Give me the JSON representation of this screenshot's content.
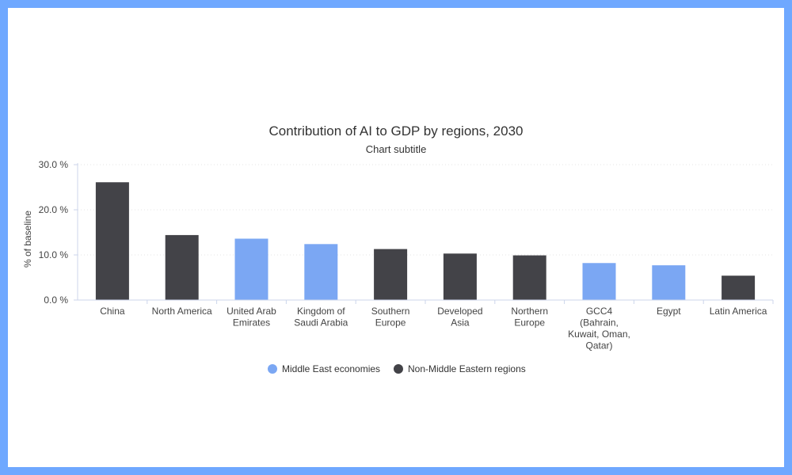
{
  "chart_data": {
    "type": "bar",
    "title": "Contribution of AI to GDP by regions, 2030",
    "subtitle": "Chart subtitle",
    "ylabel": "% of baseline",
    "xlabel": "",
    "ylim": [
      0,
      30
    ],
    "yticks": [
      0,
      10,
      20,
      30
    ],
    "ytick_labels": [
      "0.0 %",
      "10.0 %",
      "20.0 %",
      "30.0 %"
    ],
    "grid": true,
    "legend_position": "bottom",
    "categories": [
      [
        "China"
      ],
      [
        "North America"
      ],
      [
        "United Arab",
        "Emirates"
      ],
      [
        "Kingdom of",
        "Saudi Arabia"
      ],
      [
        "Southern",
        "Europe"
      ],
      [
        "Developed",
        "Asia"
      ],
      [
        "Northern",
        "Europe"
      ],
      [
        "GCC4",
        "(Bahrain,",
        "Kuwait, Oman,",
        "Qatar)"
      ],
      [
        "Egypt"
      ],
      [
        "Latin America"
      ]
    ],
    "values": [
      26.1,
      14.4,
      13.6,
      12.4,
      11.3,
      10.3,
      9.9,
      8.2,
      7.7,
      5.4
    ],
    "groups": [
      1,
      1,
      0,
      0,
      1,
      1,
      1,
      0,
      0,
      1
    ],
    "series": [
      {
        "name": "Middle East economies",
        "color": "#7ba7f3"
      },
      {
        "name": "Non-Middle Eastern regions",
        "color": "#434348"
      }
    ]
  }
}
